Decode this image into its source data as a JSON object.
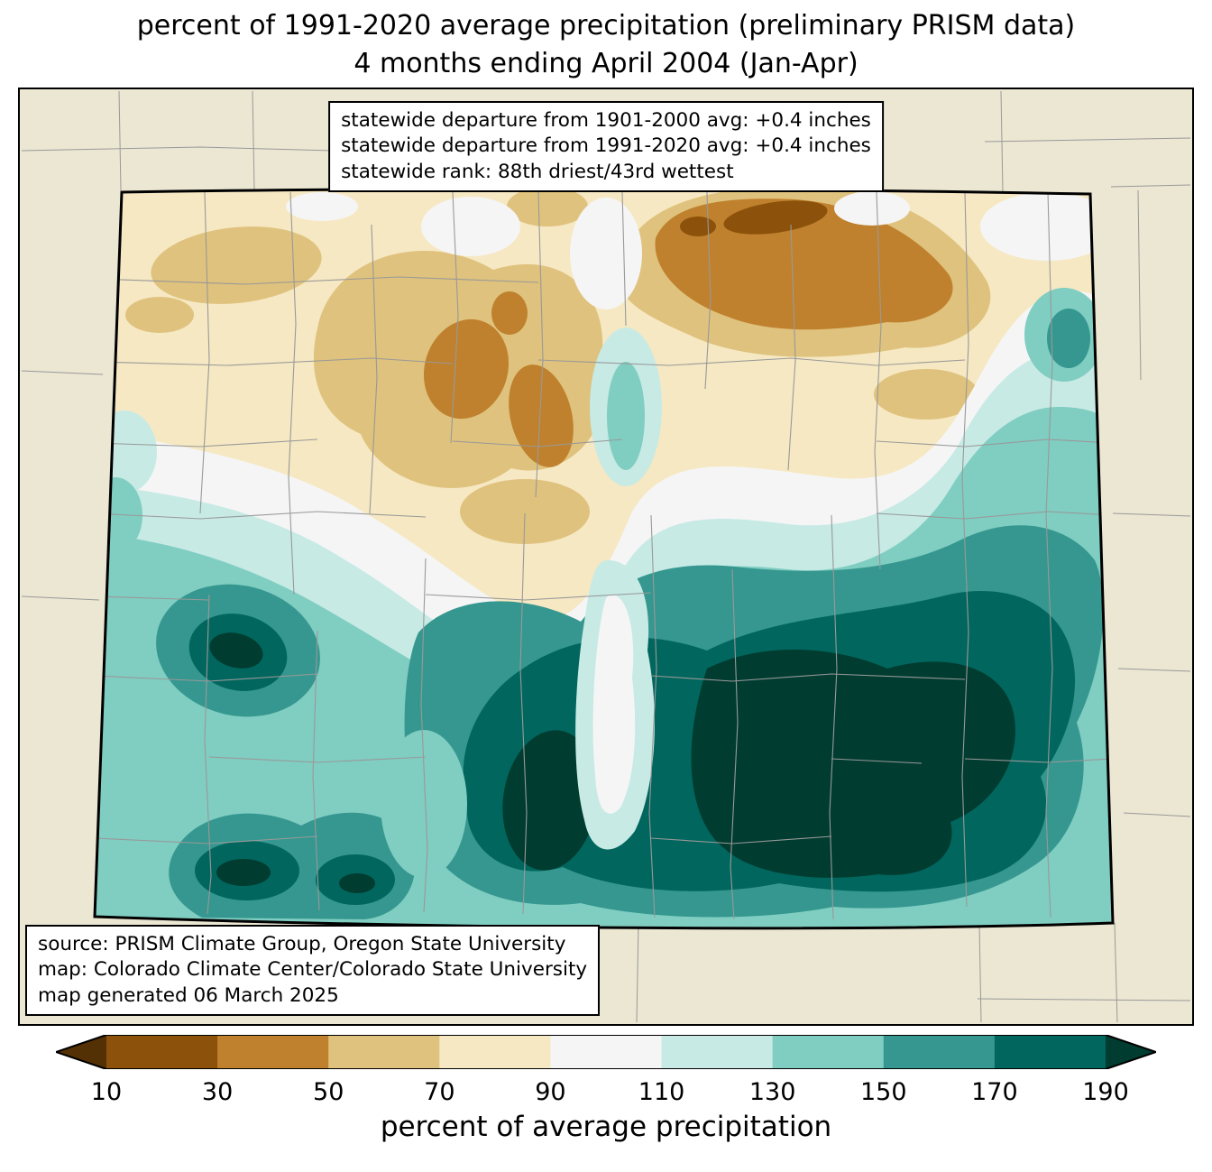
{
  "title": {
    "line1": "percent of 1991-2020 average precipitation (preliminary PRISM data)",
    "line2": "4 months ending April 2004 (Jan-Apr)"
  },
  "stats_box": {
    "line1": "statewide departure from 1901-2000 avg: +0.4 inches",
    "line2": "statewide departure from 1991-2020 avg: +0.4 inches",
    "line3": "statewide rank: 88th driest/43rd wettest"
  },
  "source_box": {
    "line1": "source: PRISM Climate Group, Oregon State University",
    "line2": "map: Colorado Climate Center/Colorado State University",
    "line3": "map generated 06 March 2025"
  },
  "colorbar": {
    "label": "percent of average precipitation",
    "tick_labels": [
      "10",
      "30",
      "50",
      "70",
      "90",
      "110",
      "130",
      "150",
      "170",
      "190"
    ],
    "scale_colors": [
      "#543005",
      "#8c510a",
      "#bf812d",
      "#dfc27d",
      "#f6e8c3",
      "#f5f5f5",
      "#c7eae5",
      "#80cdc1",
      "#35978f",
      "#01665e",
      "#003c30"
    ]
  },
  "map": {
    "background_color": "#ebe7d3",
    "state_border_color": "#000000",
    "county_line_color": "#999999"
  }
}
